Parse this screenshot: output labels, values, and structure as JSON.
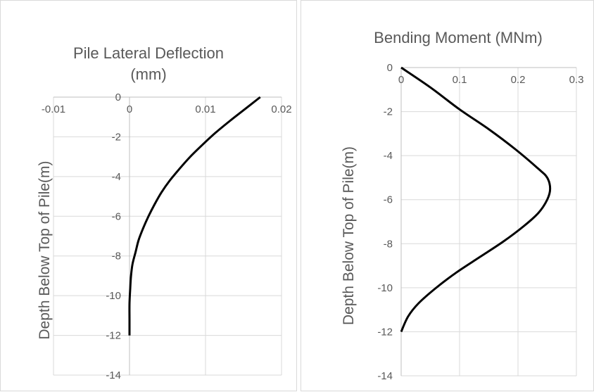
{
  "chart_data": [
    {
      "type": "line",
      "title_lines": [
        "Pile Lateral Deflection",
        "(mm)"
      ],
      "xlabel": "",
      "ylabel": "Depth Below Top of Pile(m)",
      "xlim": [
        -0.01,
        0.02
      ],
      "ylim": [
        -14,
        0
      ],
      "x_ticks": [
        -0.01,
        0,
        0.01,
        0.02
      ],
      "y_ticks": [
        0,
        -2,
        -4,
        -6,
        -8,
        -10,
        -12,
        -14
      ],
      "x_axis_position": "top",
      "grid": true,
      "line_color": "#000000",
      "series": [
        {
          "x": [
            0.0172,
            0.0152,
            0.0132,
            0.0113,
            0.0096,
            0.008,
            0.0066,
            0.0053,
            0.0042,
            0.0033,
            0.0025,
            0.0018,
            0.0012,
            0.0008,
            0.0004,
            0.0002,
            0.0001,
            0.0,
            0.0,
            0.0
          ],
          "y": [
            0,
            -0.6,
            -1.2,
            -1.8,
            -2.4,
            -3.0,
            -3.6,
            -4.2,
            -4.8,
            -5.4,
            -6.0,
            -6.6,
            -7.2,
            -7.8,
            -8.4,
            -9.0,
            -9.6,
            -10.4,
            -11.2,
            -12.0
          ]
        }
      ]
    },
    {
      "type": "line",
      "title_lines": [
        "Bending Moment (MNm)"
      ],
      "xlabel": "",
      "ylabel": "Depth Below Top of Pile(m)",
      "xlim": [
        0,
        0.3
      ],
      "ylim": [
        -14,
        0
      ],
      "x_ticks": [
        0,
        0.1,
        0.2,
        0.3
      ],
      "y_ticks": [
        0,
        -2,
        -4,
        -6,
        -8,
        -10,
        -12,
        -14
      ],
      "x_axis_position": "top",
      "grid": true,
      "line_color": "#000000",
      "series": [
        {
          "x": [
            0.0,
            0.05,
            0.1,
            0.15,
            0.195,
            0.235,
            0.25,
            0.255,
            0.25,
            0.235,
            0.21,
            0.175,
            0.135,
            0.095,
            0.06,
            0.03,
            0.012,
            0.0
          ],
          "y": [
            0,
            -0.9,
            -1.9,
            -2.8,
            -3.7,
            -4.6,
            -5.0,
            -5.5,
            -6.0,
            -6.6,
            -7.2,
            -7.9,
            -8.6,
            -9.3,
            -10.0,
            -10.7,
            -11.3,
            -12.0
          ]
        }
      ]
    }
  ]
}
